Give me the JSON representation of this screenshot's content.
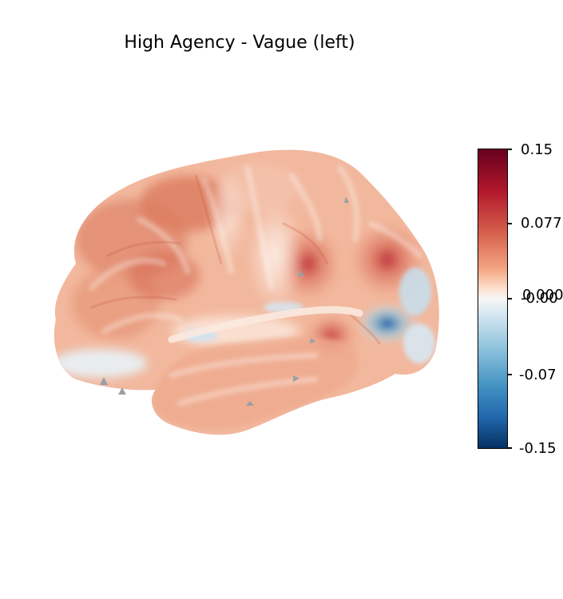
{
  "figure": {
    "title": "High Agency - Vague (left)"
  },
  "brain": {
    "view": "left lateral surface",
    "colormap": "RdBu_r"
  },
  "colorbar": {
    "max_label": "0.15",
    "upper_mid_label": "0.077",
    "center_label_a": "-0.00",
    "center_label_b": "0.000",
    "lower_mid_label": "-0.07",
    "min_label": "-0.15",
    "colors": {
      "max": "#67001f",
      "upper": "#d6604d",
      "center": "#f7f7f7",
      "lower": "#4393c3",
      "min": "#053061"
    }
  }
}
